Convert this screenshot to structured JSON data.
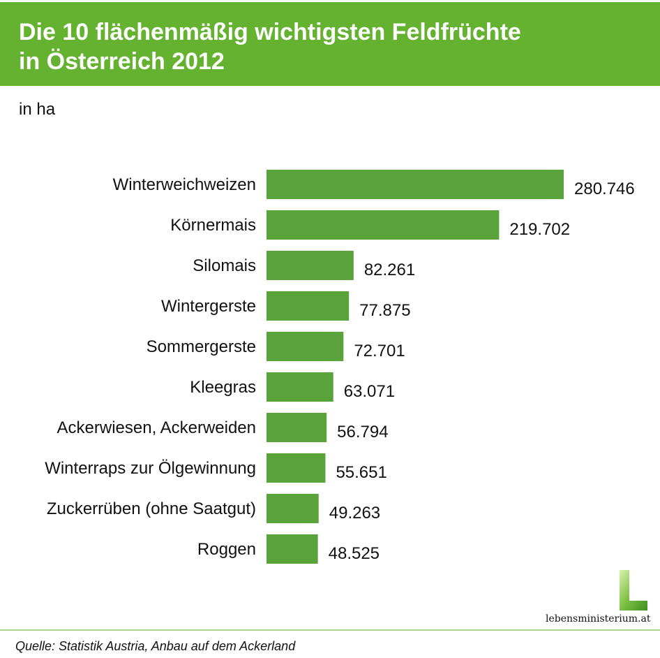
{
  "title": "Die 10 flächenmäßig wichtigsten Feldfrüchte\nin Österreich 2012",
  "unit": "in ha",
  "chart_data": {
    "type": "bar",
    "orientation": "horizontal",
    "title": "Die 10 flächenmäßig wichtigsten Feldfrüchte in Österreich 2012",
    "xlabel": "",
    "ylabel": "",
    "unit": "ha",
    "categories": [
      "Winterweichweizen",
      "Körnermais",
      "Silomais",
      "Wintergerste",
      "Sommergerste",
      "Kleegras",
      "Ackerwiesen, Ackerweiden",
      "Winterraps zur Ölgewinnung",
      "Zuckerrüben (ohne Saatgut)",
      "Roggen"
    ],
    "values": [
      280746,
      219702,
      82261,
      77875,
      72701,
      63071,
      56794,
      55651,
      49263,
      48525
    ],
    "value_labels": [
      "280.746",
      "219.702",
      "82.261",
      "77.875",
      "72.701",
      "63.071",
      "56.794",
      "55.651",
      "49.263",
      "48.525"
    ],
    "xlim": [
      0,
      280746
    ],
    "grid": false,
    "bar_color": "#5aa33a"
  },
  "logo": {
    "text": "lebensministerium.at"
  },
  "source": "Quelle: Statistik Austria, Anbau auf dem Ackerland",
  "colors": {
    "header": "#64b22f",
    "bar": "#5aa33a",
    "footer_line": "#a8d48a"
  }
}
